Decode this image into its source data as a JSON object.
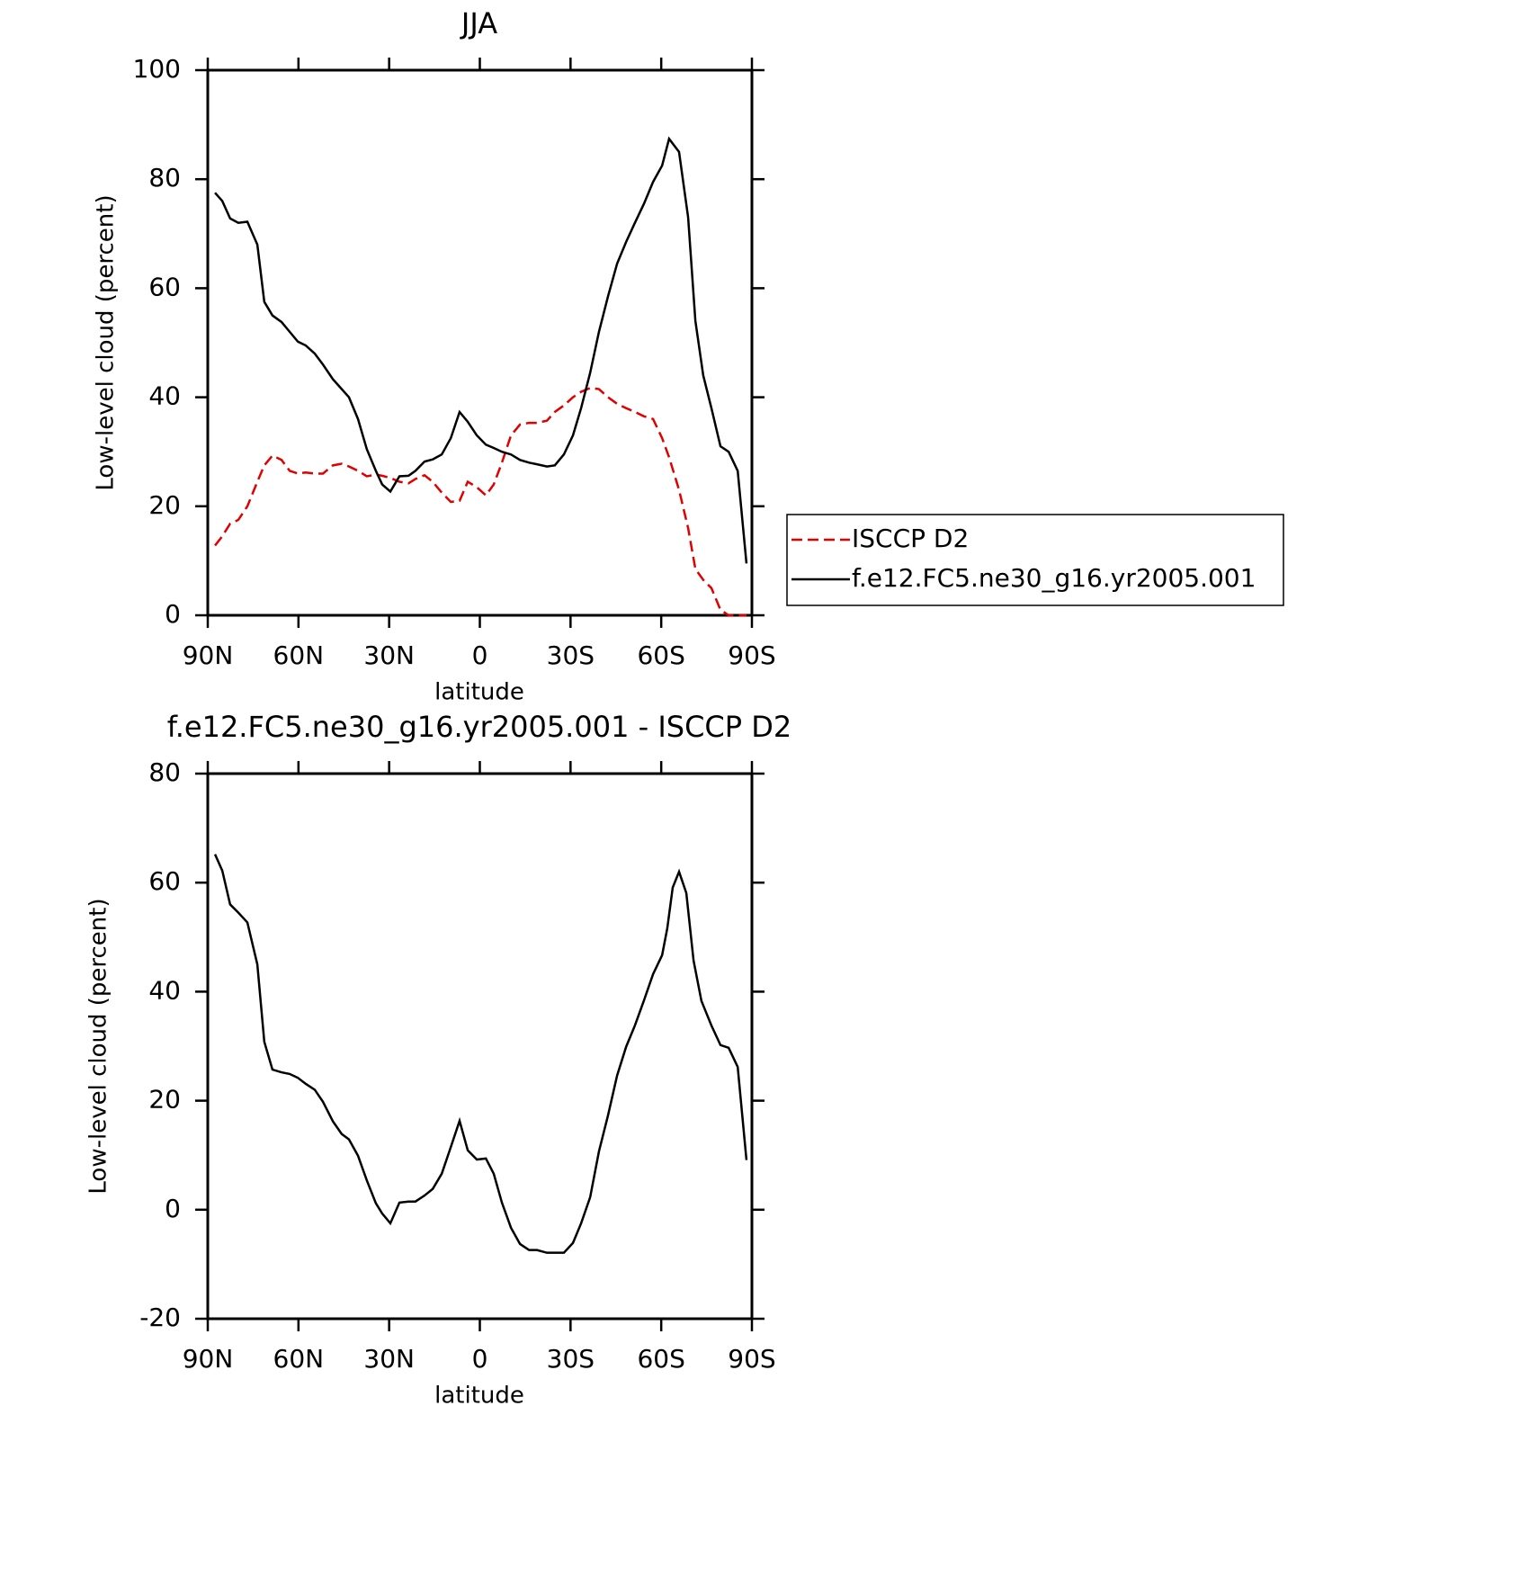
{
  "chart_data": [
    {
      "type": "line",
      "title": "JJA",
      "xlabel": "latitude",
      "ylabel": "Low-level cloud (percent)",
      "x": [
        87.6,
        85.2,
        82.6,
        79.9,
        76.9,
        73.6,
        71.3,
        68.6,
        65.6,
        62.9,
        60.2,
        57.6,
        54.6,
        51.9,
        48.6,
        45.7,
        43.3,
        40.3,
        37.4,
        34.4,
        32.3,
        29.6,
        26.6,
        23.6,
        21.3,
        18.3,
        15.6,
        12.6,
        9.6,
        6.7,
        4.0,
        1.0,
        -2.0,
        -4.6,
        -7.3,
        -10.3,
        -13.3,
        -16.3,
        -18.9,
        -22.2,
        -24.8,
        -27.8,
        -30.8,
        -33.5,
        -36.5,
        -39.4,
        -42.4,
        -45.4,
        -48.4,
        -51.3,
        -54.3,
        -57.3,
        -60.3,
        -62.6,
        -65.9,
        -68.9,
        -71.3,
        -73.9,
        -76.6,
        -79.6,
        -82.3,
        -85.3,
        -88.2
      ],
      "series": [
        {
          "name": "ISCCP D2",
          "color": "#e00000",
          "dashed": true,
          "values": [
            12.8,
            14.5,
            16.8,
            17.5,
            20,
            24.5,
            27.5,
            29.3,
            28.5,
            26.5,
            26,
            26.2,
            26,
            26,
            27.5,
            27.8,
            27.3,
            26.5,
            25.5,
            25.8,
            25.6,
            25.2,
            24.5,
            24.2,
            25,
            25.7,
            24.5,
            22.5,
            20.8,
            21,
            24.5,
            23.5,
            22,
            24,
            28,
            33,
            35,
            35.3,
            35.3,
            35.7,
            37.3,
            38.5,
            40,
            41,
            41.7,
            41.5,
            40,
            38.8,
            38,
            37.3,
            36.5,
            36,
            32.5,
            29,
            23,
            16,
            8.5,
            6.5,
            5,
            1,
            0,
            0,
            0
          ]
        },
        {
          "name": "f.e12.FC5.ne30_g16.yr2005.001",
          "color": "#000000",
          "dashed": false,
          "values": [
            77.5,
            76,
            72.8,
            72,
            72.2,
            68,
            57.5,
            55,
            53.8,
            52,
            50.2,
            49.5,
            48,
            46,
            43.3,
            41.5,
            40,
            36,
            30.5,
            26.5,
            24,
            22.7,
            25.5,
            25.6,
            26.5,
            28.2,
            28.6,
            29.5,
            32.5,
            37.3,
            35.5,
            33,
            31.3,
            30.7,
            30,
            29.5,
            28.5,
            28,
            27.7,
            27.3,
            27.5,
            29.5,
            33,
            38,
            44.5,
            52,
            58.5,
            64.5,
            68.5,
            72,
            75.5,
            79.5,
            82.5,
            87.4,
            85,
            73,
            54,
            44,
            38,
            31,
            30,
            26.5,
            9.5
          ]
        }
      ],
      "xlim": [
        90,
        -90
      ],
      "xticks": [
        {
          "value": 90,
          "label": "90N"
        },
        {
          "value": 60,
          "label": "60N"
        },
        {
          "value": 30,
          "label": "30N"
        },
        0,
        {
          "value": -30,
          "label": "30S"
        },
        {
          "value": -60,
          "label": "60S"
        },
        {
          "value": -90,
          "label": "90S"
        }
      ],
      "ylim": [
        0,
        100
      ],
      "yticks": [
        0,
        20,
        40,
        60,
        80,
        100
      ],
      "legend": "right"
    },
    {
      "type": "line",
      "title": "f.e12.FC5.ne30_g16.yr2005.001 - ISCCP D2",
      "xlabel": "latitude",
      "ylabel": "Low-level cloud (percent)",
      "x": [
        87.6,
        85.2,
        82.6,
        79.9,
        76.9,
        73.6,
        71.3,
        68.6,
        65.6,
        62.9,
        60.2,
        57.6,
        54.6,
        51.9,
        48.6,
        45.7,
        43.3,
        40.3,
        37.4,
        34.4,
        32.3,
        29.6,
        26.6,
        23.6,
        21.3,
        18.3,
        15.6,
        12.6,
        9.6,
        6.7,
        4.0,
        1.0,
        -2.0,
        -4.6,
        -7.3,
        -10.3,
        -13.3,
        -16.3,
        -18.9,
        -22.2,
        -24.8,
        -27.8,
        -30.8,
        -33.5,
        -36.5,
        -39.4,
        -42.4,
        -45.4,
        -48.4,
        -51.3,
        -54.3,
        -57.3,
        -60.3,
        -62.0,
        -63.8,
        -65.9,
        -68.3,
        -70.7,
        -73.3,
        -76.6,
        -79.6,
        -82.3,
        -85.3,
        -88.2
      ],
      "series": [
        {
          "color": "#000000",
          "dashed": false,
          "values": [
            65.2,
            62.2,
            56,
            54.5,
            52.7,
            45,
            30.8,
            25.7,
            25.2,
            24.9,
            24.2,
            23.1,
            22,
            19.8,
            16.2,
            13.9,
            12.9,
            9.9,
            5.4,
            1.2,
            -0.7,
            -2.5,
            1.3,
            1.5,
            1.5,
            2.6,
            3.8,
            6.6,
            11.5,
            16.3,
            10.9,
            9.2,
            9.4,
            6.6,
            1.3,
            -3.3,
            -6.3,
            -7.4,
            -7.4,
            -7.9,
            -7.9,
            -7.9,
            -6.1,
            -2.5,
            2.3,
            10.7,
            17.3,
            24.6,
            29.9,
            33.8,
            38.4,
            43.2,
            46.7,
            51.6,
            59.1,
            62,
            58.1,
            45.7,
            38.3,
            33.8,
            30.2,
            29.7,
            26.2,
            9.1
          ]
        }
      ],
      "xlim": [
        90,
        -90
      ],
      "xticks": [
        {
          "value": 90,
          "label": "90N"
        },
        {
          "value": 60,
          "label": "60N"
        },
        {
          "value": 30,
          "label": "30N"
        },
        0,
        {
          "value": -30,
          "label": "30S"
        },
        {
          "value": -60,
          "label": "60S"
        },
        {
          "value": -90,
          "label": "90S"
        }
      ],
      "ylim": [
        -20,
        80
      ],
      "yticks": [
        -20,
        0,
        20,
        40,
        60,
        80
      ]
    }
  ]
}
